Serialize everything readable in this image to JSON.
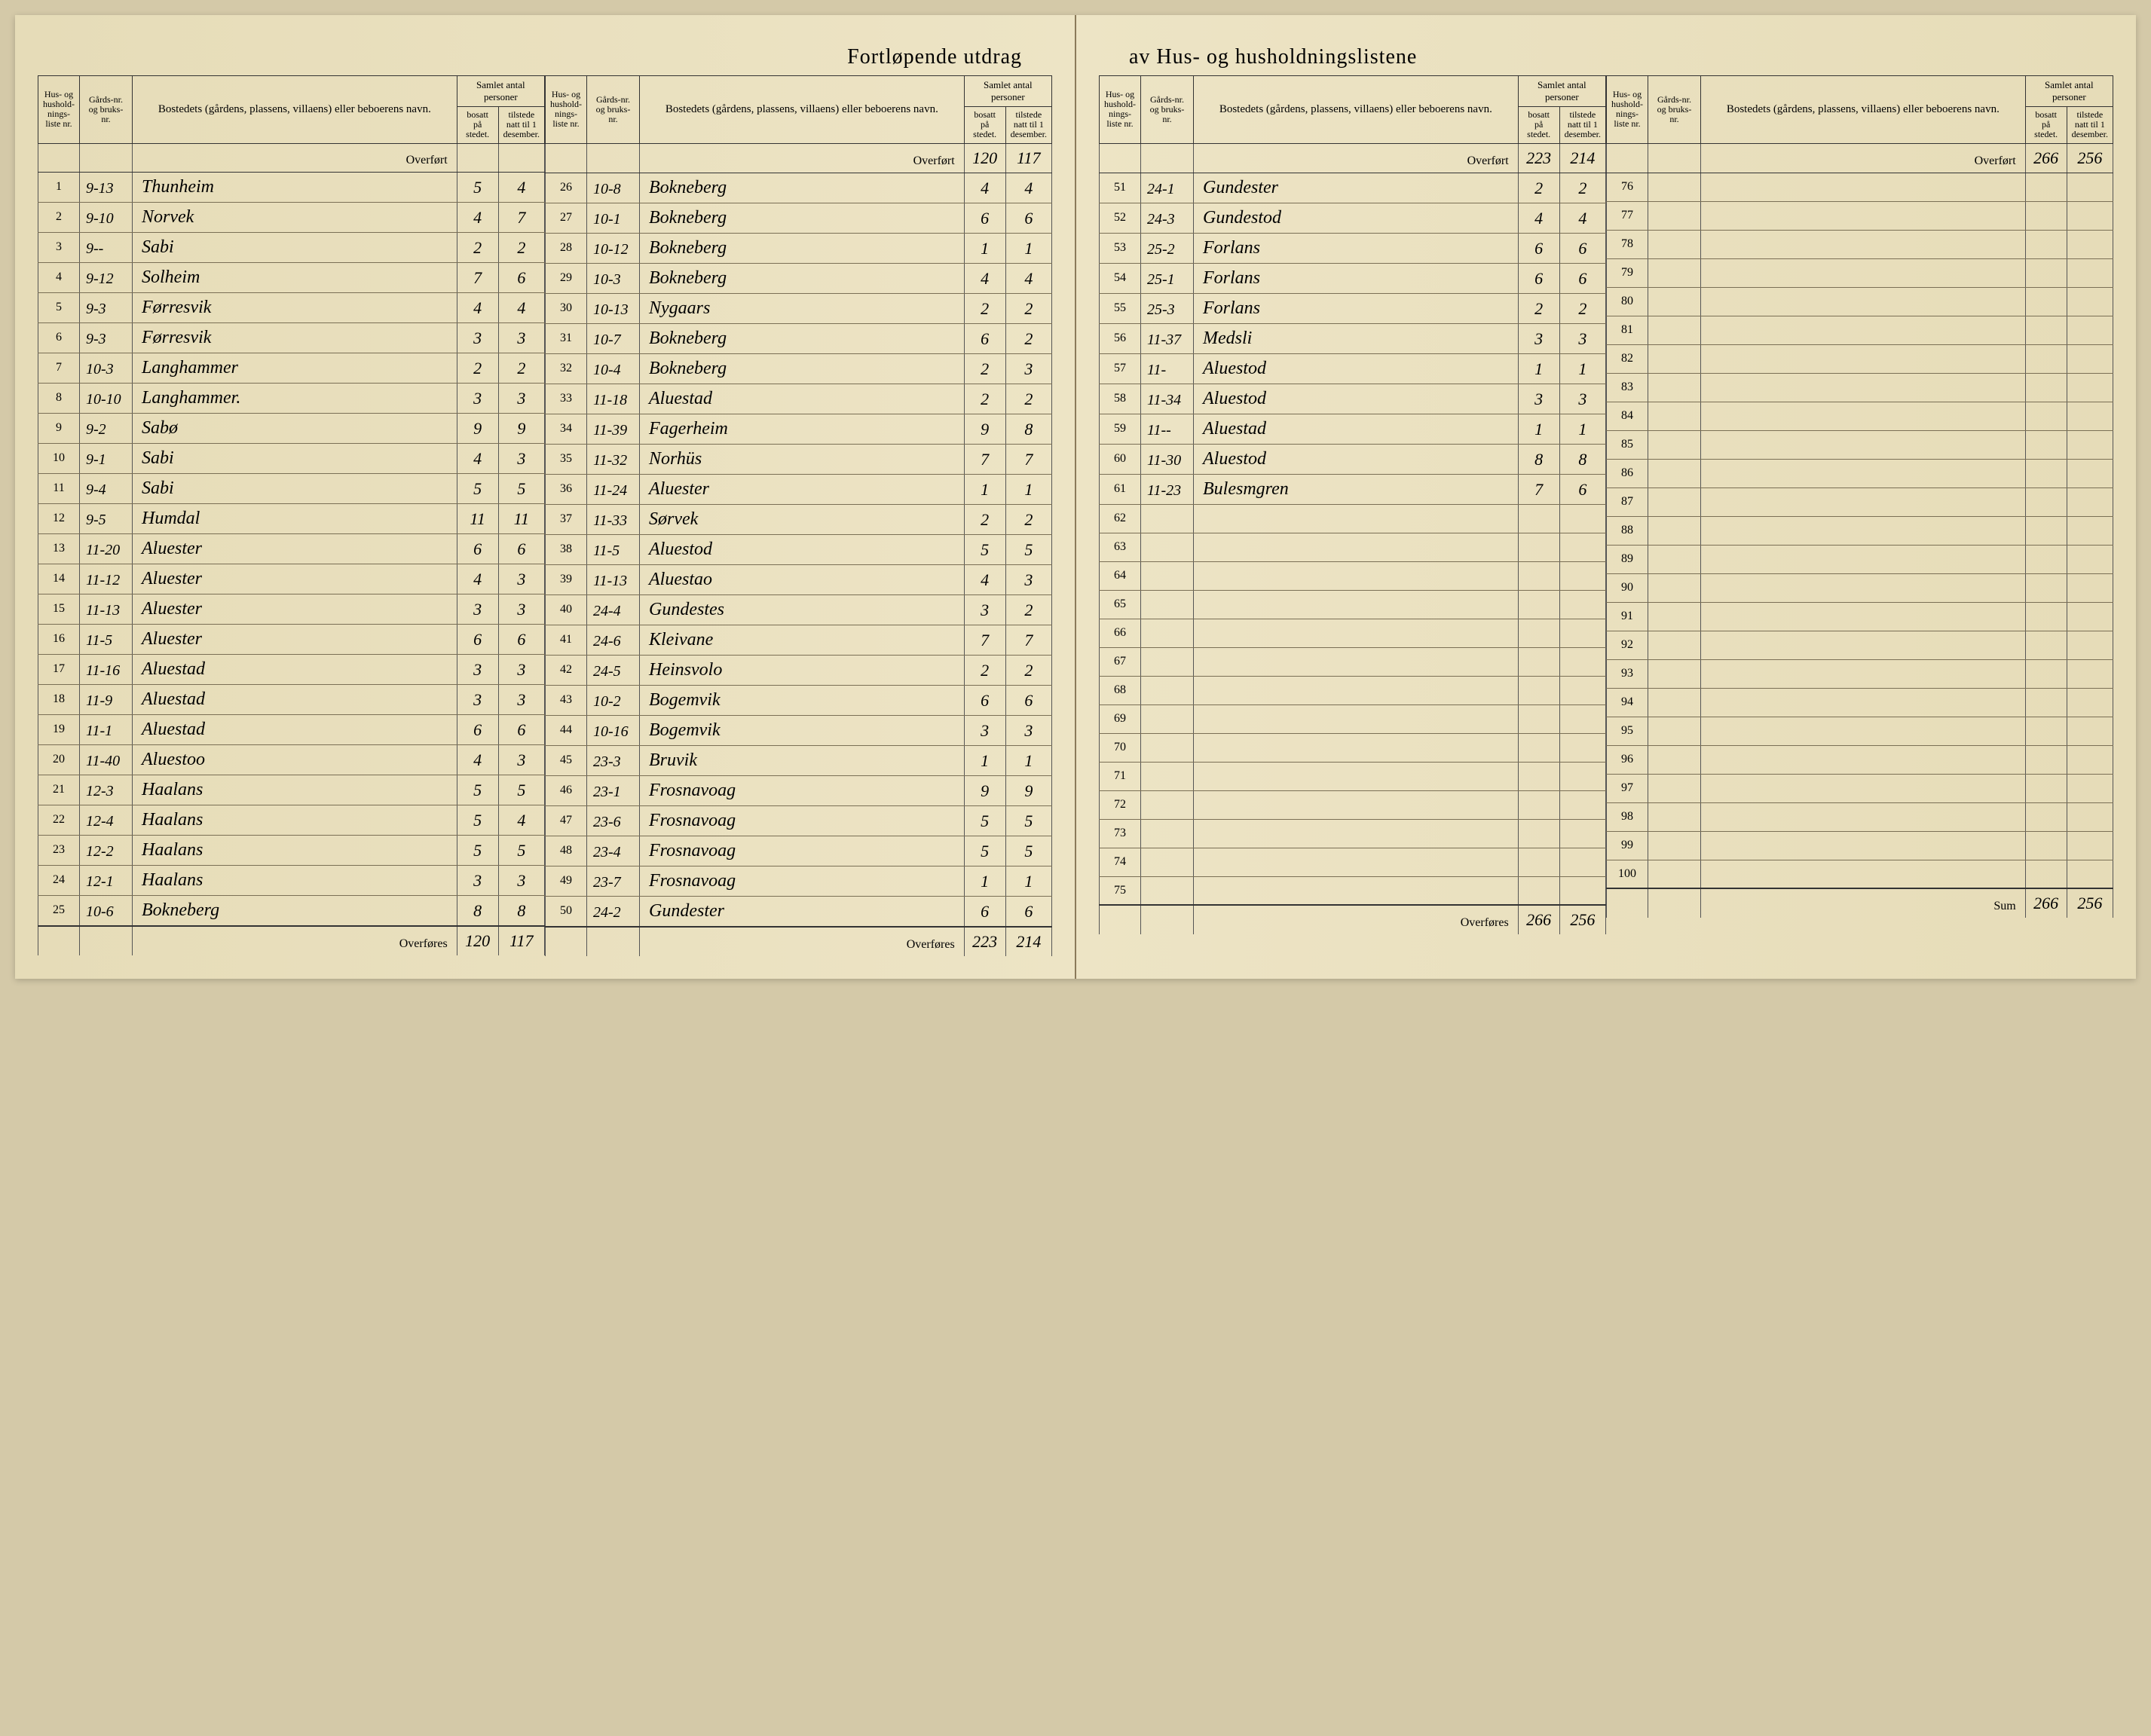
{
  "title_left": "Fortløpende utdrag",
  "title_right": "av Hus- og husholdningslistene",
  "headers": {
    "liste_nr": "Hus- og hushold-nings-liste nr.",
    "gards_nr": "Gårds-nr. og bruks-nr.",
    "bosted": "Bostedets (gårdens, plassens, villaens) eller beboerens navn.",
    "samlet": "Samlet antal personer",
    "bosatt": "bosatt på stedet.",
    "tilstede": "tilstede natt til 1 desember."
  },
  "overfort_label": "Overført",
  "overfores_label": "Overføres",
  "sum_label": "Sum",
  "columns": [
    {
      "overfort": {
        "bosatt": "",
        "tilstede": ""
      },
      "rows": [
        {
          "n": "1",
          "g": "9-13",
          "name": "Thunheim",
          "b": "5",
          "t": "4"
        },
        {
          "n": "2",
          "g": "9-10",
          "name": "Norvek",
          "b": "4",
          "t": "7"
        },
        {
          "n": "3",
          "g": "9--",
          "name": "Sabi",
          "b": "2",
          "t": "2"
        },
        {
          "n": "4",
          "g": "9-12",
          "name": "Solheim",
          "b": "7",
          "t": "6"
        },
        {
          "n": "5",
          "g": "9-3",
          "name": "Førresvik",
          "b": "4",
          "t": "4"
        },
        {
          "n": "6",
          "g": "9-3",
          "name": "Førresvik",
          "b": "3",
          "t": "3"
        },
        {
          "n": "7",
          "g": "10-3",
          "name": "Langhammer",
          "b": "2",
          "t": "2"
        },
        {
          "n": "8",
          "g": "10-10",
          "name": "Langhammer.",
          "b": "3",
          "t": "3"
        },
        {
          "n": "9",
          "g": "9-2",
          "name": "Sabø",
          "b": "9",
          "t": "9"
        },
        {
          "n": "10",
          "g": "9-1",
          "name": "Sabi",
          "b": "4",
          "t": "3"
        },
        {
          "n": "11",
          "g": "9-4",
          "name": "Sabi",
          "b": "5",
          "t": "5"
        },
        {
          "n": "12",
          "g": "9-5",
          "name": "Humdal",
          "b": "11",
          "t": "11"
        },
        {
          "n": "13",
          "g": "11-20",
          "name": "Aluester",
          "b": "6",
          "t": "6"
        },
        {
          "n": "14",
          "g": "11-12",
          "name": "Aluester",
          "b": "4",
          "t": "3"
        },
        {
          "n": "15",
          "g": "11-13",
          "name": "Aluester",
          "b": "3",
          "t": "3"
        },
        {
          "n": "16",
          "g": "11-5",
          "name": "Aluester",
          "b": "6",
          "t": "6"
        },
        {
          "n": "17",
          "g": "11-16",
          "name": "Aluestad",
          "b": "3",
          "t": "3"
        },
        {
          "n": "18",
          "g": "11-9",
          "name": "Aluestad",
          "b": "3",
          "t": "3"
        },
        {
          "n": "19",
          "g": "11-1",
          "name": "Aluestad",
          "b": "6",
          "t": "6"
        },
        {
          "n": "20",
          "g": "11-40",
          "name": "Aluestoo",
          "b": "4",
          "t": "3"
        },
        {
          "n": "21",
          "g": "12-3",
          "name": "Haalans",
          "b": "5",
          "t": "5"
        },
        {
          "n": "22",
          "g": "12-4",
          "name": "Haalans",
          "b": "5",
          "t": "4"
        },
        {
          "n": "23",
          "g": "12-2",
          "name": "Haalans",
          "b": "5",
          "t": "5"
        },
        {
          "n": "24",
          "g": "12-1",
          "name": "Haalans",
          "b": "3",
          "t": "3"
        },
        {
          "n": "25",
          "g": "10-6",
          "name": "Bokneberg",
          "b": "8",
          "t": "8"
        }
      ],
      "footer": {
        "bosatt": "120",
        "tilstede": "117"
      }
    },
    {
      "overfort": {
        "bosatt": "120",
        "tilstede": "117"
      },
      "rows": [
        {
          "n": "26",
          "g": "10-8",
          "name": "Bokneberg",
          "b": "4",
          "t": "4"
        },
        {
          "n": "27",
          "g": "10-1",
          "name": "Bokneberg",
          "b": "6",
          "t": "6"
        },
        {
          "n": "28",
          "g": "10-12",
          "name": "Bokneberg",
          "b": "1",
          "t": "1"
        },
        {
          "n": "29",
          "g": "10-3",
          "name": "Bokneberg",
          "b": "4",
          "t": "4"
        },
        {
          "n": "30",
          "g": "10-13",
          "name": "Nygaars",
          "b": "2",
          "t": "2"
        },
        {
          "n": "31",
          "g": "10-7",
          "name": "Bokneberg",
          "b": "6",
          "t": "2"
        },
        {
          "n": "32",
          "g": "10-4",
          "name": "Bokneberg",
          "b": "2",
          "t": "3"
        },
        {
          "n": "33",
          "g": "11-18",
          "name": "Aluestad",
          "b": "2",
          "t": "2"
        },
        {
          "n": "34",
          "g": "11-39",
          "name": "Fagerheim",
          "b": "9",
          "t": "8"
        },
        {
          "n": "35",
          "g": "11-32",
          "name": "Norhüs",
          "b": "7",
          "t": "7"
        },
        {
          "n": "36",
          "g": "11-24",
          "name": "Aluester",
          "b": "1",
          "t": "1"
        },
        {
          "n": "37",
          "g": "11-33",
          "name": "Sørvek",
          "b": "2",
          "t": "2"
        },
        {
          "n": "38",
          "g": "11-5",
          "name": "Aluestod",
          "b": "5",
          "t": "5"
        },
        {
          "n": "39",
          "g": "11-13",
          "name": "Aluestao",
          "b": "4",
          "t": "3"
        },
        {
          "n": "40",
          "g": "24-4",
          "name": "Gundestes",
          "b": "3",
          "t": "2"
        },
        {
          "n": "41",
          "g": "24-6",
          "name": "Kleivane",
          "b": "7",
          "t": "7"
        },
        {
          "n": "42",
          "g": "24-5",
          "name": "Heinsvolo",
          "b": "2",
          "t": "2"
        },
        {
          "n": "43",
          "g": "10-2",
          "name": "Bogemvik",
          "b": "6",
          "t": "6"
        },
        {
          "n": "44",
          "g": "10-16",
          "name": "Bogemvik",
          "b": "3",
          "t": "3"
        },
        {
          "n": "45",
          "g": "23-3",
          "name": "Bruvik",
          "b": "1",
          "t": "1"
        },
        {
          "n": "46",
          "g": "23-1",
          "name": "Frosnavoag",
          "b": "9",
          "t": "9"
        },
        {
          "n": "47",
          "g": "23-6",
          "name": "Frosnavoag",
          "b": "5",
          "t": "5"
        },
        {
          "n": "48",
          "g": "23-4",
          "name": "Frosnavoag",
          "b": "5",
          "t": "5"
        },
        {
          "n": "49",
          "g": "23-7",
          "name": "Frosnavoag",
          "b": "1",
          "t": "1"
        },
        {
          "n": "50",
          "g": "24-2",
          "name": "Gundester",
          "b": "6",
          "t": "6"
        }
      ],
      "footer": {
        "bosatt": "223",
        "tilstede": "214"
      }
    },
    {
      "overfort": {
        "bosatt": "223",
        "tilstede": "214"
      },
      "rows": [
        {
          "n": "51",
          "g": "24-1",
          "name": "Gundester",
          "b": "2",
          "t": "2"
        },
        {
          "n": "52",
          "g": "24-3",
          "name": "Gundestod",
          "b": "4",
          "t": "4"
        },
        {
          "n": "53",
          "g": "25-2",
          "name": "Forlans",
          "b": "6",
          "t": "6"
        },
        {
          "n": "54",
          "g": "25-1",
          "name": "Forlans",
          "b": "6",
          "t": "6"
        },
        {
          "n": "55",
          "g": "25-3",
          "name": "Forlans",
          "b": "2",
          "t": "2"
        },
        {
          "n": "56",
          "g": "11-37",
          "name": "Medsli",
          "b": "3",
          "t": "3"
        },
        {
          "n": "57",
          "g": "11-",
          "name": "Aluestod",
          "b": "1",
          "t": "1"
        },
        {
          "n": "58",
          "g": "11-34",
          "name": "Aluestod",
          "b": "3",
          "t": "3"
        },
        {
          "n": "59",
          "g": "11--",
          "name": "Aluestad",
          "b": "1",
          "t": "1"
        },
        {
          "n": "60",
          "g": "11-30",
          "name": "Aluestod",
          "b": "8",
          "t": "8"
        },
        {
          "n": "61",
          "g": "11-23",
          "name": "Bulesmgren",
          "b": "7",
          "t": "6"
        },
        {
          "n": "62",
          "g": "",
          "name": "",
          "b": "",
          "t": ""
        },
        {
          "n": "63",
          "g": "",
          "name": "",
          "b": "",
          "t": ""
        },
        {
          "n": "64",
          "g": "",
          "name": "",
          "b": "",
          "t": ""
        },
        {
          "n": "65",
          "g": "",
          "name": "",
          "b": "",
          "t": ""
        },
        {
          "n": "66",
          "g": "",
          "name": "",
          "b": "",
          "t": ""
        },
        {
          "n": "67",
          "g": "",
          "name": "",
          "b": "",
          "t": ""
        },
        {
          "n": "68",
          "g": "",
          "name": "",
          "b": "",
          "t": ""
        },
        {
          "n": "69",
          "g": "",
          "name": "",
          "b": "",
          "t": ""
        },
        {
          "n": "70",
          "g": "",
          "name": "",
          "b": "",
          "t": ""
        },
        {
          "n": "71",
          "g": "",
          "name": "",
          "b": "",
          "t": ""
        },
        {
          "n": "72",
          "g": "",
          "name": "",
          "b": "",
          "t": ""
        },
        {
          "n": "73",
          "g": "",
          "name": "",
          "b": "",
          "t": ""
        },
        {
          "n": "74",
          "g": "",
          "name": "",
          "b": "",
          "t": ""
        },
        {
          "n": "75",
          "g": "",
          "name": "",
          "b": "",
          "t": ""
        }
      ],
      "footer": {
        "bosatt": "266",
        "tilstede": "256"
      }
    },
    {
      "overfort": {
        "bosatt": "266",
        "tilstede": "256"
      },
      "rows": [
        {
          "n": "76",
          "g": "",
          "name": "",
          "b": "",
          "t": ""
        },
        {
          "n": "77",
          "g": "",
          "name": "",
          "b": "",
          "t": ""
        },
        {
          "n": "78",
          "g": "",
          "name": "",
          "b": "",
          "t": ""
        },
        {
          "n": "79",
          "g": "",
          "name": "",
          "b": "",
          "t": ""
        },
        {
          "n": "80",
          "g": "",
          "name": "",
          "b": "",
          "t": ""
        },
        {
          "n": "81",
          "g": "",
          "name": "",
          "b": "",
          "t": ""
        },
        {
          "n": "82",
          "g": "",
          "name": "",
          "b": "",
          "t": ""
        },
        {
          "n": "83",
          "g": "",
          "name": "",
          "b": "",
          "t": ""
        },
        {
          "n": "84",
          "g": "",
          "name": "",
          "b": "",
          "t": ""
        },
        {
          "n": "85",
          "g": "",
          "name": "",
          "b": "",
          "t": ""
        },
        {
          "n": "86",
          "g": "",
          "name": "",
          "b": "",
          "t": ""
        },
        {
          "n": "87",
          "g": "",
          "name": "",
          "b": "",
          "t": ""
        },
        {
          "n": "88",
          "g": "",
          "name": "",
          "b": "",
          "t": ""
        },
        {
          "n": "89",
          "g": "",
          "name": "",
          "b": "",
          "t": ""
        },
        {
          "n": "90",
          "g": "",
          "name": "",
          "b": "",
          "t": ""
        },
        {
          "n": "91",
          "g": "",
          "name": "",
          "b": "",
          "t": ""
        },
        {
          "n": "92",
          "g": "",
          "name": "",
          "b": "",
          "t": ""
        },
        {
          "n": "93",
          "g": "",
          "name": "",
          "b": "",
          "t": ""
        },
        {
          "n": "94",
          "g": "",
          "name": "",
          "b": "",
          "t": ""
        },
        {
          "n": "95",
          "g": "",
          "name": "",
          "b": "",
          "t": ""
        },
        {
          "n": "96",
          "g": "",
          "name": "",
          "b": "",
          "t": ""
        },
        {
          "n": "97",
          "g": "",
          "name": "",
          "b": "",
          "t": ""
        },
        {
          "n": "98",
          "g": "",
          "name": "",
          "b": "",
          "t": ""
        },
        {
          "n": "99",
          "g": "",
          "name": "",
          "b": "",
          "t": ""
        },
        {
          "n": "100",
          "g": "",
          "name": "",
          "b": "",
          "t": ""
        }
      ],
      "footer": {
        "label": "Sum",
        "bosatt": "266",
        "tilstede": "256"
      }
    }
  ]
}
